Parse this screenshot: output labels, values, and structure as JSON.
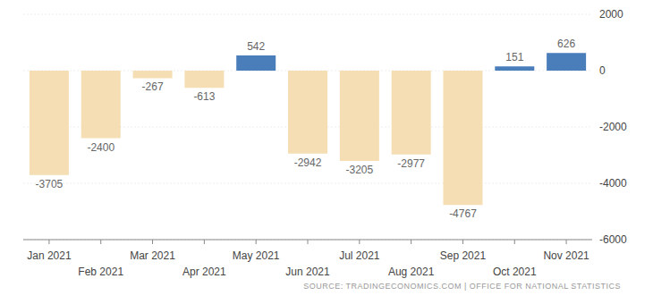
{
  "chart_data": {
    "type": "bar",
    "categories": [
      "Jan 2021",
      "Feb 2021",
      "Mar 2021",
      "Apr 2021",
      "May 2021",
      "Jun 2021",
      "Jul 2021",
      "Aug 2021",
      "Sep 2021",
      "Oct 2021",
      "Nov 2021"
    ],
    "values": [
      -3705,
      -2400,
      -267,
      -613,
      542,
      -2942,
      -3205,
      -2977,
      -4767,
      151,
      626
    ],
    "colors": [
      "#f5deb3",
      "#f5deb3",
      "#f5deb3",
      "#f5deb3",
      "#4a7ebb",
      "#f5deb3",
      "#f5deb3",
      "#f5deb3",
      "#f5deb3",
      "#4a7ebb",
      "#4a7ebb"
    ],
    "ylim": [
      -6000,
      2000
    ],
    "yticks": [
      -6000,
      -4000,
      -2000,
      0,
      2000
    ],
    "grid": true,
    "data_labels": true,
    "source": "SOURCE: TRADINGECONOMICS.COM | OFFICE FOR NATIONAL STATISTICS"
  }
}
